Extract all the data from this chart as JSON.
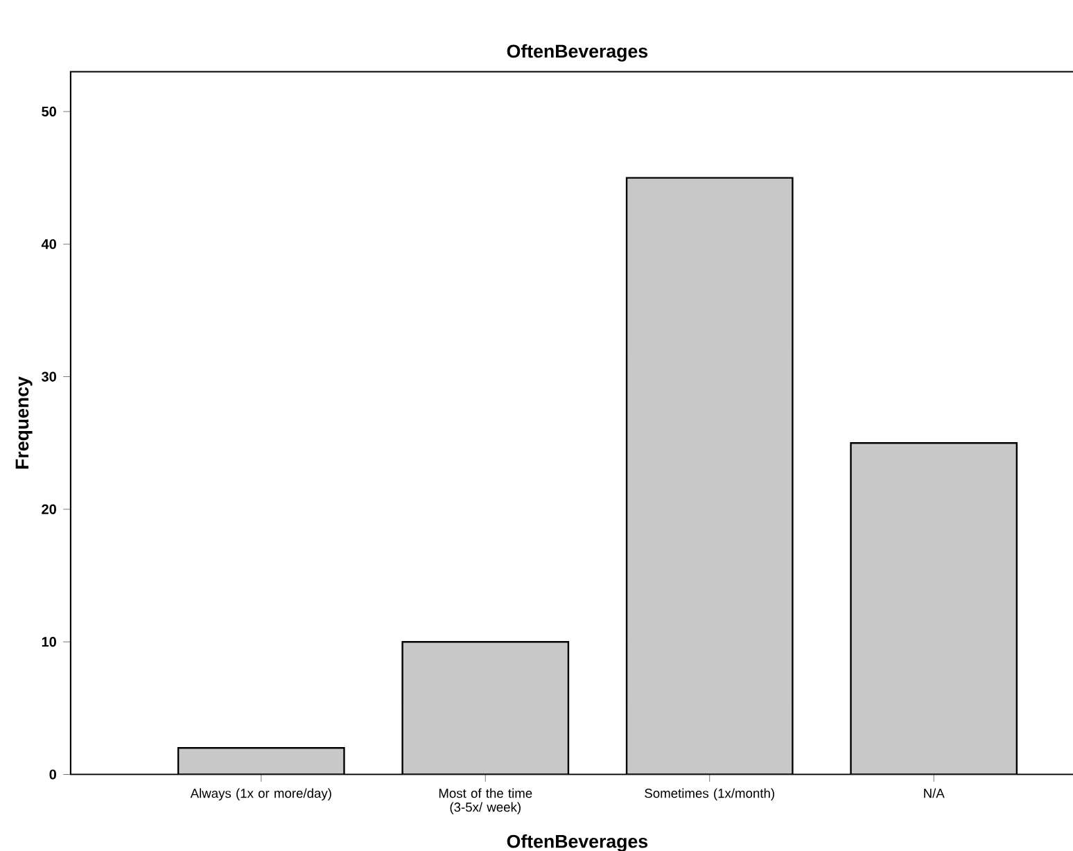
{
  "chart_data": {
    "type": "bar",
    "title": "OftenBeverages",
    "xlabel": "OftenBeverages",
    "ylabel": "Frequency",
    "categories": [
      "Always (1x or more/day)",
      "Most of the time (3-5x/ week)",
      "Sometimes (1x/month)",
      "N/A"
    ],
    "values": [
      2,
      10,
      45,
      25
    ],
    "color": "#c8c8c8",
    "ylim": [
      0,
      53
    ],
    "yticks": [
      0,
      10,
      20,
      30,
      40,
      50
    ]
  }
}
